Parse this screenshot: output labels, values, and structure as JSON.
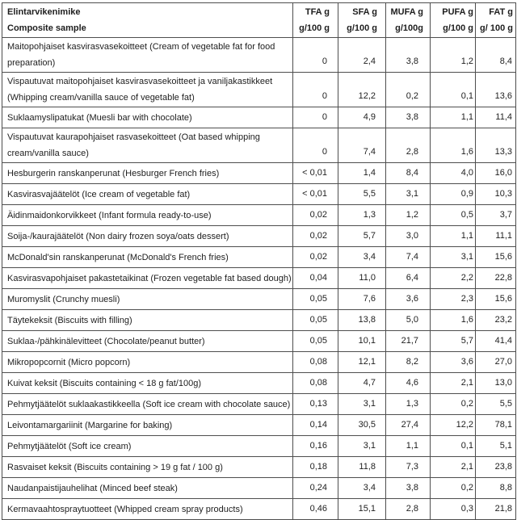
{
  "page": {
    "background_color": "#ffffff",
    "border_color": "#4e4e4e",
    "text_color": "#1e1e1e"
  },
  "table": {
    "header": {
      "name": {
        "line1": "Elintarvikenimike",
        "line2": "Composite sample"
      },
      "columns": [
        {
          "id": "tfa",
          "line1": "TFA g",
          "line2": "g/100 g"
        },
        {
          "id": "sfa",
          "line1": "SFA g",
          "line2": "g/100 g"
        },
        {
          "id": "mufa",
          "line1": "MUFA g",
          "line2": "g/100g"
        },
        {
          "id": "pufa",
          "line1": "PUFA g",
          "line2": "g/100 g"
        },
        {
          "id": "fat",
          "line1": "FAT g",
          "line2": "g/ 100 g"
        }
      ]
    },
    "rows": [
      {
        "name": "Maitopohjaiset kasvirasvasekoitteet (Cream of vegetable fat for food\npreparation)",
        "tfa": "0",
        "sfa": "2,4",
        "mufa": "3,8",
        "pufa": "1,2",
        "fat": "8,4"
      },
      {
        "name": "Vispautuvat maitopohjaiset kasvirasvasekoitteet ja vaniljakastikkeet\n(Whipping cream/vanilla sauce of vegetable fat)",
        "tfa": "0",
        "sfa": "12,2",
        "mufa": "0,2",
        "pufa": "0,1",
        "fat": "13,6"
      },
      {
        "name": "Suklaamyslipatukat (Muesli bar with chocolate)",
        "tfa": "0",
        "sfa": "4,9",
        "mufa": "3,8",
        "pufa": "1,1",
        "fat": "11,4"
      },
      {
        "name": "Vispautuvat kaurapohjaiset rasvasekoitteet (Oat based whipping\ncream/vanilla sauce)",
        "tfa": "0",
        "sfa": "7,4",
        "mufa": "2,8",
        "pufa": "1,6",
        "fat": "13,3"
      },
      {
        "name": "Hesburgerin ranskanperunat (Hesburger French fries)",
        "tfa": "< 0,01",
        "sfa": "1,4",
        "mufa": "8,4",
        "pufa": "4,0",
        "fat": "16,0"
      },
      {
        "name": "Kasvirasvajäätelöt (Ice cream of vegetable fat)",
        "tfa": "< 0,01",
        "sfa": "5,5",
        "mufa": "3,1",
        "pufa": "0,9",
        "fat": "10,3"
      },
      {
        "name": "Äidinmaidonkorvikkeet (Infant formula ready-to-use)",
        "tfa": "0,02",
        "sfa": "1,3",
        "mufa": "1,2",
        "pufa": "0,5",
        "fat": "3,7"
      },
      {
        "name": "Soija-/kaurajäätelöt (Non dairy frozen soya/oats dessert)",
        "tfa": "0,02",
        "sfa": "5,7",
        "mufa": "3,0",
        "pufa": "1,1",
        "fat": "11,1"
      },
      {
        "name": "McDonald'sin ranskanperunat (McDonald's French fries)",
        "tfa": "0,02",
        "sfa": "3,4",
        "mufa": "7,4",
        "pufa": "3,1",
        "fat": "15,6"
      },
      {
        "name": "Kasvirasvapohjaiset pakastetaikinat (Frozen vegetable fat based dough)",
        "tfa": "0,04",
        "sfa": "11,0",
        "mufa": "6,4",
        "pufa": "2,2",
        "fat": "22,8"
      },
      {
        "name": "Muromyslit (Crunchy muesli)",
        "tfa": "0,05",
        "sfa": "7,6",
        "mufa": "3,6",
        "pufa": "2,3",
        "fat": "15,6"
      },
      {
        "name": "Täytekeksit (Biscuits with filling)",
        "tfa": "0,05",
        "sfa": "13,8",
        "mufa": "5,0",
        "pufa": "1,6",
        "fat": "23,2"
      },
      {
        "name": "Suklaa-/pähkinälevitteet (Chocolate/peanut butter)",
        "tfa": "0,05",
        "sfa": "10,1",
        "mufa": "21,7",
        "pufa": "5,7",
        "fat": "41,4"
      },
      {
        "name": "Mikropopcornit (Micro popcorn)",
        "tfa": "0,08",
        "sfa": "12,1",
        "mufa": "8,2",
        "pufa": "3,6",
        "fat": "27,0"
      },
      {
        "name": "Kuivat keksit (Biscuits containing < 18 g fat/100g)",
        "tfa": "0,08",
        "sfa": "4,7",
        "mufa": "4,6",
        "pufa": "2,1",
        "fat": "13,0"
      },
      {
        "name": "Pehmytjäätelöt suklaakastikkeella (Soft ice cream with chocolate sauce)",
        "tfa": "0,13",
        "sfa": "3,1",
        "mufa": "1,3",
        "pufa": "0,2",
        "fat": "5,5"
      },
      {
        "name": "Leivontamargariinit (Margarine for baking)",
        "tfa": "0,14",
        "sfa": "30,5",
        "mufa": "27,4",
        "pufa": "12,2",
        "fat": "78,1"
      },
      {
        "name": "Pehmytjäätelöt (Soft ice cream)",
        "tfa": "0,16",
        "sfa": "3,1",
        "mufa": "1,1",
        "pufa": "0,1",
        "fat": "5,1"
      },
      {
        "name": "Rasvaiset keksit (Biscuits containing > 19 g fat / 100 g)",
        "tfa": "0,18",
        "sfa": "11,8",
        "mufa": "7,3",
        "pufa": "2,1",
        "fat": "23,8"
      },
      {
        "name": "Naudanpaistijauhelihat (Minced beef steak)",
        "tfa": "0,24",
        "sfa": "3,4",
        "mufa": "3,8",
        "pufa": "0,2",
        "fat": "8,8"
      },
      {
        "name": "Kermavaahtospraytuotteet (Whipped cream spray products)",
        "tfa": "0,46",
        "sfa": "15,1",
        "mufa": "2,8",
        "pufa": "0,3",
        "fat": "21,8"
      }
    ]
  }
}
